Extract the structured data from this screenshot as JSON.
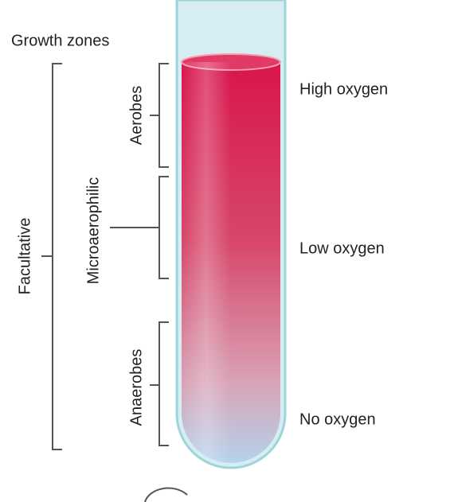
{
  "title": "Growth zones",
  "groups": {
    "facultative": "Facultative",
    "aerobes": "Aerobes",
    "microaerophilic": "Microaerophilic",
    "anaerobes": "Anaerobes"
  },
  "levels": [
    "High oxygen",
    "Low oxygen",
    "No oxygen"
  ]
}
